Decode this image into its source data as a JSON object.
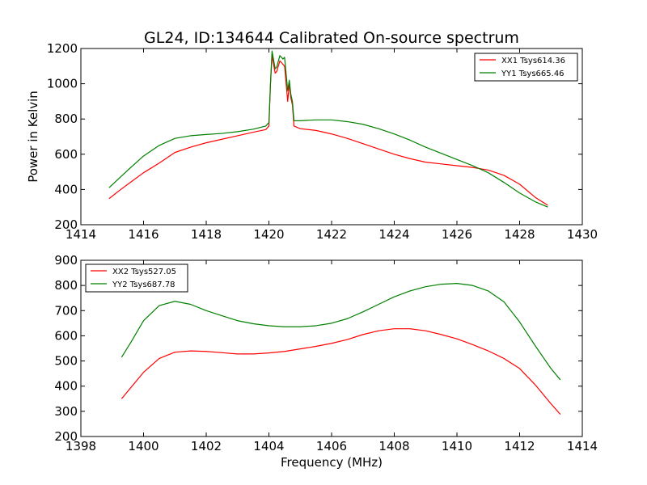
{
  "chart_data": [
    {
      "type": "line",
      "title": "GL24, ID:134644 Calibrated On-source spectrum",
      "xlabel": "",
      "ylabel": "Power in Kelvin",
      "xlim": [
        1414,
        1430
      ],
      "ylim": [
        200,
        1200
      ],
      "xticks": [
        1414,
        1416,
        1418,
        1420,
        1422,
        1424,
        1426,
        1428,
        1430
      ],
      "yticks": [
        200,
        400,
        600,
        800,
        1000,
        1200
      ],
      "grid": false,
      "legend": "top-right",
      "series": [
        {
          "name": "XX1 Tsys614.36",
          "color": "#ff0000",
          "x": [
            1414.9,
            1415.2,
            1415.5,
            1416.0,
            1416.5,
            1417.0,
            1417.5,
            1418.0,
            1418.5,
            1419.0,
            1419.5,
            1419.9,
            1420.0,
            1420.05,
            1420.1,
            1420.2,
            1420.25,
            1420.35,
            1420.45,
            1420.5,
            1420.6,
            1420.65,
            1420.7,
            1420.75,
            1420.8,
            1421.0,
            1421.5,
            1422.0,
            1422.5,
            1423.0,
            1423.5,
            1424.0,
            1424.5,
            1425.0,
            1425.5,
            1426.0,
            1426.5,
            1427.0,
            1427.5,
            1428.0,
            1428.5,
            1428.9
          ],
          "y": [
            348,
            390,
            430,
            495,
            550,
            610,
            640,
            665,
            685,
            705,
            725,
            740,
            760,
            1000,
            1160,
            1060,
            1070,
            1130,
            1110,
            1100,
            900,
            1000,
            920,
            880,
            760,
            745,
            735,
            715,
            690,
            660,
            630,
            600,
            575,
            555,
            545,
            535,
            525,
            510,
            480,
            430,
            355,
            310
          ]
        },
        {
          "name": "YY1 Tsys665.46",
          "color": "#008000",
          "x": [
            1414.9,
            1415.2,
            1415.5,
            1416.0,
            1416.5,
            1417.0,
            1417.5,
            1418.0,
            1418.5,
            1419.0,
            1419.5,
            1419.9,
            1420.0,
            1420.05,
            1420.1,
            1420.2,
            1420.25,
            1420.35,
            1420.45,
            1420.5,
            1420.6,
            1420.65,
            1420.7,
            1420.75,
            1420.8,
            1421.0,
            1421.5,
            1422.0,
            1422.5,
            1423.0,
            1423.5,
            1424.0,
            1424.5,
            1425.0,
            1425.5,
            1426.0,
            1426.5,
            1427.0,
            1427.5,
            1428.0,
            1428.5,
            1428.9
          ],
          "y": [
            410,
            460,
            510,
            590,
            650,
            690,
            705,
            712,
            718,
            728,
            742,
            760,
            780,
            1000,
            1185,
            1085,
            1095,
            1160,
            1140,
            1150,
            960,
            1020,
            940,
            900,
            790,
            790,
            795,
            795,
            785,
            770,
            745,
            715,
            680,
            640,
            605,
            570,
            535,
            495,
            440,
            380,
            330,
            300
          ]
        }
      ]
    },
    {
      "type": "line",
      "title": "",
      "xlabel": "Frequency (MHz)",
      "ylabel": "",
      "xlim": [
        1398,
        1414
      ],
      "ylim": [
        200,
        900
      ],
      "xticks": [
        1398,
        1400,
        1402,
        1404,
        1406,
        1408,
        1410,
        1412,
        1414
      ],
      "yticks": [
        200,
        300,
        400,
        500,
        600,
        700,
        800,
        900
      ],
      "grid": false,
      "legend": "top-left",
      "series": [
        {
          "name": "XX2 Tsys527.05",
          "color": "#ff0000",
          "x": [
            1399.3,
            1399.6,
            1400.0,
            1400.5,
            1401.0,
            1401.5,
            1402.0,
            1402.5,
            1403.0,
            1403.5,
            1404.0,
            1404.5,
            1405.0,
            1405.5,
            1406.0,
            1406.5,
            1407.0,
            1407.5,
            1408.0,
            1408.5,
            1409.0,
            1409.5,
            1410.0,
            1410.5,
            1411.0,
            1411.5,
            1412.0,
            1412.5,
            1413.0,
            1413.3
          ],
          "y": [
            350,
            395,
            455,
            510,
            535,
            540,
            538,
            533,
            528,
            528,
            532,
            538,
            548,
            558,
            570,
            585,
            605,
            620,
            628,
            628,
            620,
            605,
            588,
            565,
            540,
            510,
            470,
            405,
            330,
            288
          ]
        },
        {
          "name": "YY2 Tsys687.78",
          "color": "#008000",
          "x": [
            1399.3,
            1399.6,
            1400.0,
            1400.5,
            1401.0,
            1401.5,
            1402.0,
            1402.5,
            1403.0,
            1403.5,
            1404.0,
            1404.5,
            1405.0,
            1405.5,
            1406.0,
            1406.5,
            1407.0,
            1407.5,
            1408.0,
            1408.5,
            1409.0,
            1409.5,
            1410.0,
            1410.5,
            1411.0,
            1411.5,
            1412.0,
            1412.5,
            1413.0,
            1413.3
          ],
          "y": [
            515,
            575,
            660,
            720,
            737,
            725,
            700,
            680,
            660,
            648,
            640,
            636,
            636,
            640,
            650,
            668,
            695,
            725,
            755,
            778,
            795,
            805,
            808,
            800,
            778,
            735,
            655,
            560,
            470,
            425
          ]
        }
      ]
    }
  ]
}
